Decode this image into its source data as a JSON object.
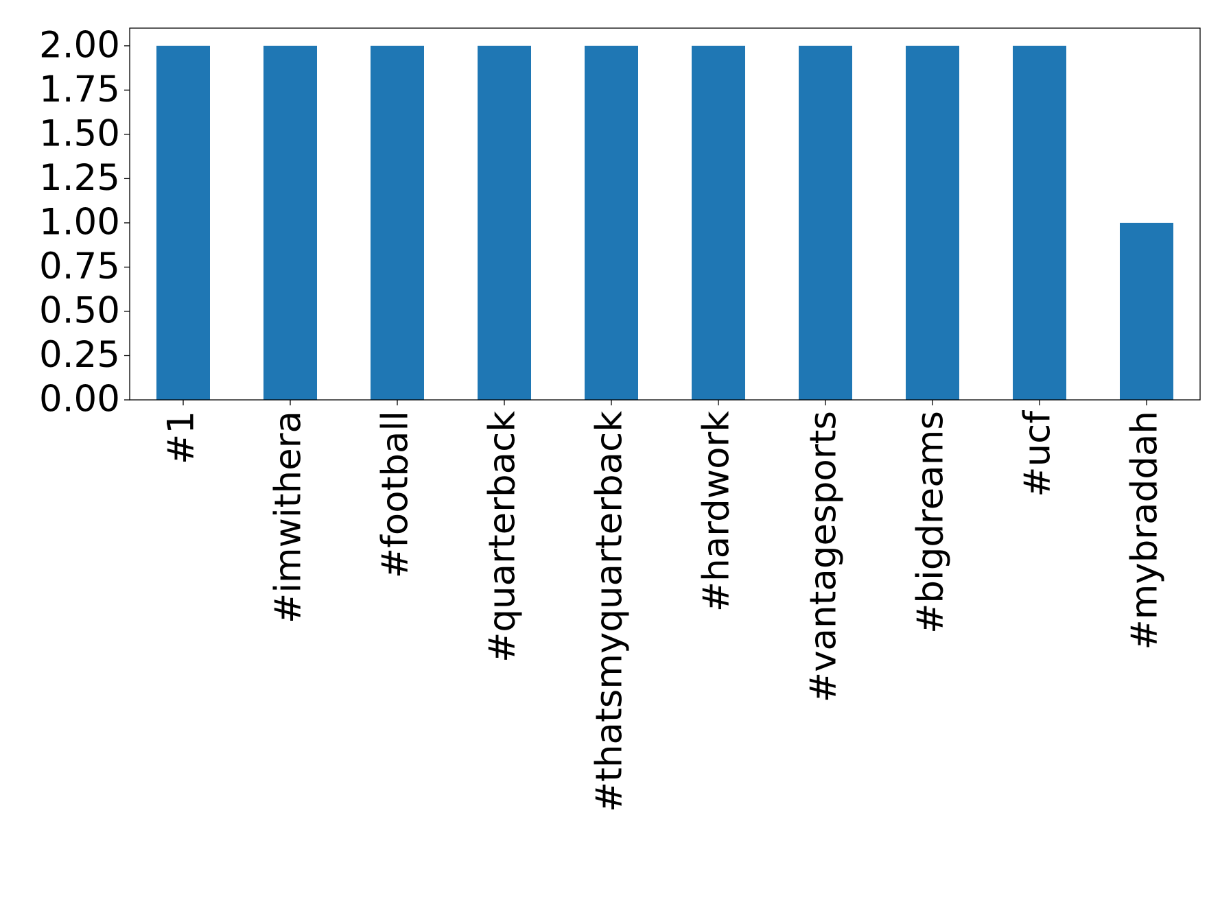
{
  "chart_data": {
    "type": "bar",
    "categories": [
      "#1",
      "#imwithera",
      "#football",
      "#quarterback",
      "#thatsmyquarterback",
      "#hardwork",
      "#vantagesports",
      "#bigdreams",
      "#ucf",
      "#mybraddah"
    ],
    "values": [
      2,
      2,
      2,
      2,
      2,
      2,
      2,
      2,
      2,
      1
    ],
    "color": "#1f77b4",
    "ylim": [
      0,
      2.1
    ],
    "yticks": [
      {
        "value": 0,
        "label": "0.00"
      },
      {
        "value": 0.25,
        "label": "0.25"
      },
      {
        "value": 0.5,
        "label": "0.50"
      },
      {
        "value": 0.75,
        "label": "0.75"
      },
      {
        "value": 1,
        "label": "1.00"
      },
      {
        "value": 1.25,
        "label": "1.25"
      },
      {
        "value": 1.5,
        "label": "1.50"
      },
      {
        "value": 1.75,
        "label": "1.75"
      },
      {
        "value": 2,
        "label": "2.00"
      }
    ],
    "grid": false
  }
}
